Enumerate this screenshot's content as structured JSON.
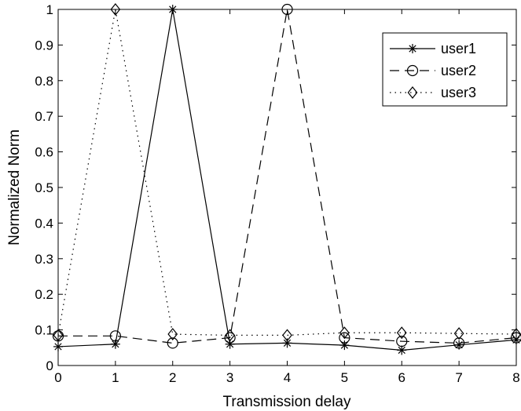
{
  "chart_data": {
    "type": "line",
    "title": "",
    "xlabel": "Transmission delay",
    "ylabel": "Normalized Norm",
    "xlim": [
      0,
      8
    ],
    "ylim": [
      0,
      1
    ],
    "x_ticks": [
      "0",
      "1",
      "2",
      "3",
      "4",
      "5",
      "6",
      "7",
      "8"
    ],
    "y_ticks": [
      "0",
      "0.1",
      "0.2",
      "0.3",
      "0.4",
      "0.5",
      "0.6",
      "0.7",
      "0.8",
      "0.9",
      "1"
    ],
    "grid": false,
    "legend_position": "top-right",
    "x": [
      0,
      1,
      2,
      3,
      4,
      5,
      6,
      7,
      8
    ],
    "series": [
      {
        "name": "user1",
        "values": [
          0.053,
          0.06,
          1.0,
          0.06,
          0.063,
          0.057,
          0.043,
          0.058,
          0.072
        ],
        "line_style": "solid",
        "marker": "asterisk"
      },
      {
        "name": "user2",
        "values": [
          0.083,
          0.083,
          0.063,
          0.078,
          1.0,
          0.078,
          0.068,
          0.063,
          0.078
        ],
        "line_style": "dashed",
        "marker": "circle"
      },
      {
        "name": "user3",
        "values": [
          0.085,
          1.0,
          0.088,
          0.085,
          0.085,
          0.092,
          0.092,
          0.09,
          0.088
        ],
        "line_style": "dotted",
        "marker": "diamond"
      }
    ]
  }
}
